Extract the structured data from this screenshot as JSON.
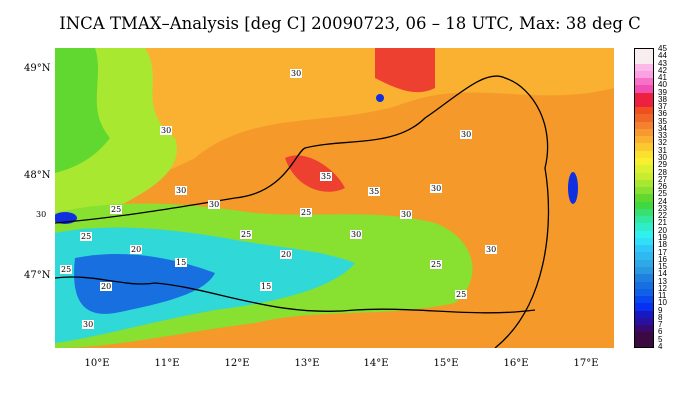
{
  "title": "INCA TMAX–Analysis [deg C] 20090723, 06 – 18 UTC, Max: 38 deg C",
  "lat_labels": [
    "49°N",
    "48°N",
    "47°N"
  ],
  "lon_labels": [
    "10°E",
    "11°E",
    "12°E",
    "13°E",
    "14°E",
    "15°E",
    "16°E",
    "17°E"
  ],
  "colorbar": {
    "labels": [
      "45",
      "44",
      "43",
      "42",
      "41",
      "40",
      "39",
      "38",
      "37",
      "36",
      "35",
      "34",
      "33",
      "32",
      "31",
      "30",
      "29",
      "28",
      "27",
      "26",
      "25",
      "24",
      "23",
      "22",
      "21",
      "20",
      "19",
      "18",
      "17",
      "16",
      "15",
      "14",
      "13",
      "12",
      "11",
      "10",
      "9",
      "8",
      "7",
      "6",
      "5",
      "4"
    ],
    "colors": [
      "#f8eef0",
      "#f8eef0",
      "#fbb8e8",
      "#fba0e0",
      "#f870c8",
      "#f050b0",
      "#ee2040",
      "#ee2040",
      "#f05020",
      "#f06828",
      "#f58030",
      "#f89830",
      "#fab030",
      "#fcc830",
      "#fbe030",
      "#f6f030",
      "#dcef30",
      "#c8ec30",
      "#a8e830",
      "#88e030",
      "#60d830",
      "#40d840",
      "#38e070",
      "#30e8a0",
      "#30ecc8",
      "#30f0f0",
      "#30e0f8",
      "#30c8f8",
      "#30b8f0",
      "#30a8e8",
      "#2898e0",
      "#2080e0",
      "#1870e0",
      "#1060e8",
      "#0848f0",
      "#0830f0",
      "#1818c0",
      "#2810a0",
      "#380a70",
      "#3a0a40",
      "#3a0a40"
    ]
  },
  "contour_labels": [
    "30",
    "30",
    "30",
    "35",
    "35",
    "30",
    "25",
    "30",
    "25",
    "30",
    "25",
    "20",
    "15",
    "25",
    "20",
    "30",
    "25",
    "25",
    "30",
    "20",
    "25",
    "15",
    "30",
    "30",
    "30"
  ],
  "colors": {
    "bg": "#f59a2a",
    "north": "#fab030",
    "west": "#a8e830",
    "alps": "#30d8d8",
    "high": "#1870e0",
    "hot": "#ee4030",
    "lake": "#1030e0"
  }
}
